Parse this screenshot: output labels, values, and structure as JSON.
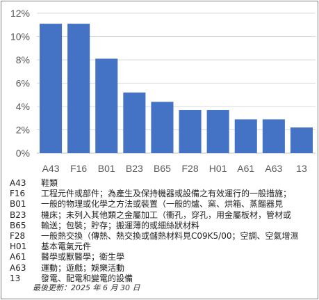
{
  "chart_data": {
    "type": "bar",
    "categories": [
      "A43",
      "F16",
      "B01",
      "B23",
      "B65",
      "F28",
      "H01",
      "A61",
      "A63",
      "13"
    ],
    "values": [
      11.1,
      11.1,
      8.1,
      5.2,
      4.4,
      3.7,
      3.7,
      2.9,
      2.9,
      2.2
    ],
    "y_tick_labels": [
      "0%",
      "2%",
      "4%",
      "6%",
      "8%",
      "10%",
      "12%"
    ],
    "ylim": [
      0,
      12
    ],
    "y_unit": "%",
    "grid": true,
    "bar_color": "#4472c4",
    "title": "",
    "xlabel": "",
    "ylabel": ""
  },
  "legend_items": [
    {
      "code": "A43",
      "desc": "鞋類"
    },
    {
      "code": "F16",
      "desc": "工程元件或部件；為產生及保持機器或設備之有效運行的一般措施；"
    },
    {
      "code": "B01",
      "desc": "一般的物理或化學之方法或裝置（一般的爐、窯、烘箱、蒸餾器見"
    },
    {
      "code": "B23",
      "desc": "機床；未列入其他類之金屬加工（衝孔，穿孔，用金屬板材，管材或"
    },
    {
      "code": "B65",
      "desc": "輸送；包裝；貯存；搬運薄的或細絲狀材料"
    },
    {
      "code": "F28",
      "desc": "一般熱交換（傳熱、熱交換或儲熱材料見C09K5/00；空調、空氣增濕"
    },
    {
      "code": "H01",
      "desc": "基本電氣元件"
    },
    {
      "code": "A61",
      "desc": "醫學或獸醫學；衛生學"
    },
    {
      "code": "A63",
      "desc": "運動；遊戲；娛樂活動"
    },
    {
      "code": "13",
      "desc": "發電、配電和變電的設備"
    }
  ],
  "last_updated": "最後更新：2025 年 6 月 30 日"
}
